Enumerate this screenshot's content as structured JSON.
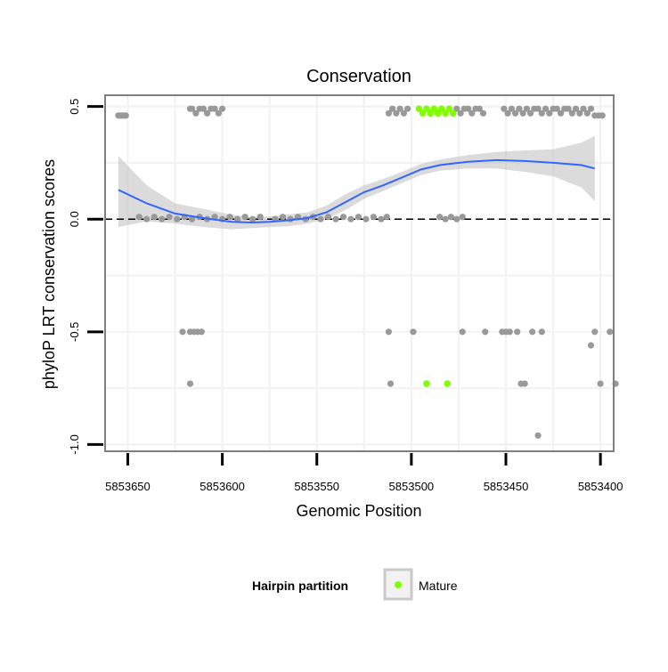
{
  "chart_data": {
    "type": "scatter",
    "title": "Conservation",
    "xlabel": "Genomic Position",
    "ylabel": "phyloP LRT conservation scores",
    "x_reversed": true,
    "xlim": [
      5853662,
      5853393
    ],
    "ylim": [
      -1.03,
      0.55
    ],
    "x_ticks": [
      5853650,
      5853600,
      5853550,
      5853500,
      5853450,
      5853400
    ],
    "y_ticks": [
      0.5,
      0.0,
      -0.5,
      -1.0
    ],
    "x_tick_labels": [
      "5853650",
      "5853600",
      "5853550",
      "5853500",
      "5853450",
      "5853400"
    ],
    "y_tick_labels": [
      "0.5",
      "0.0",
      "-0.5",
      "-1.0"
    ],
    "grid": true,
    "reference_line": {
      "y": 0.0,
      "style": "dashed"
    },
    "legend": {
      "title": "Hairpin partition",
      "placement": "bottom",
      "entries": [
        {
          "label": "Mature",
          "color": "#7fff00"
        }
      ]
    },
    "colors": {
      "points": "#999999",
      "mature": "#7fff00",
      "smooth": "#3366ff",
      "ribbon": "#bdbdbd",
      "panel_border": "#7f7f7f",
      "grid": "#f2f2f2"
    },
    "series": [
      {
        "role": "grey-points",
        "points": [
          [
            5853655,
            0.46
          ],
          [
            5853654,
            0.46
          ],
          [
            5853653,
            0.46
          ],
          [
            5853652,
            0.46
          ],
          [
            5853651,
            0.46
          ],
          [
            5853617,
            0.49
          ],
          [
            5853616,
            0.49
          ],
          [
            5853614,
            0.47
          ],
          [
            5853612,
            0.49
          ],
          [
            5853610,
            0.49
          ],
          [
            5853608,
            0.47
          ],
          [
            5853606,
            0.49
          ],
          [
            5853604,
            0.49
          ],
          [
            5853602,
            0.47
          ],
          [
            5853600,
            0.49
          ],
          [
            5853512,
            0.47
          ],
          [
            5853510,
            0.49
          ],
          [
            5853508,
            0.47
          ],
          [
            5853506,
            0.49
          ],
          [
            5853504,
            0.47
          ],
          [
            5853502,
            0.49
          ],
          [
            5853476,
            0.49
          ],
          [
            5853474,
            0.47
          ],
          [
            5853472,
            0.49
          ],
          [
            5853470,
            0.49
          ],
          [
            5853468,
            0.47
          ],
          [
            5853466,
            0.49
          ],
          [
            5853464,
            0.49
          ],
          [
            5853462,
            0.47
          ],
          [
            5853451,
            0.49
          ],
          [
            5853449,
            0.47
          ],
          [
            5853447,
            0.49
          ],
          [
            5853445,
            0.47
          ],
          [
            5853443,
            0.49
          ],
          [
            5853441,
            0.47
          ],
          [
            5853439,
            0.49
          ],
          [
            5853437,
            0.47
          ],
          [
            5853435,
            0.49
          ],
          [
            5853433,
            0.49
          ],
          [
            5853431,
            0.47
          ],
          [
            5853429,
            0.49
          ],
          [
            5853427,
            0.47
          ],
          [
            5853425,
            0.49
          ],
          [
            5853423,
            0.49
          ],
          [
            5853421,
            0.47
          ],
          [
            5853419,
            0.49
          ],
          [
            5853417,
            0.49
          ],
          [
            5853415,
            0.47
          ],
          [
            5853413,
            0.49
          ],
          [
            5853411,
            0.47
          ],
          [
            5853409,
            0.49
          ],
          [
            5853407,
            0.47
          ],
          [
            5853405,
            0.49
          ],
          [
            5853403,
            0.46
          ],
          [
            5853401,
            0.46
          ],
          [
            5853399,
            0.46
          ],
          [
            5853644,
            0.01
          ],
          [
            5853640,
            0.0
          ],
          [
            5853636,
            0.01
          ],
          [
            5853632,
            0.0
          ],
          [
            5853628,
            0.01
          ],
          [
            5853624,
            0.0
          ],
          [
            5853620,
            0.01
          ],
          [
            5853616,
            0.0
          ],
          [
            5853612,
            0.01
          ],
          [
            5853608,
            0.0
          ],
          [
            5853604,
            0.01
          ],
          [
            5853600,
            0.0
          ],
          [
            5853596,
            0.01
          ],
          [
            5853592,
            0.0
          ],
          [
            5853588,
            0.01
          ],
          [
            5853584,
            0.0
          ],
          [
            5853580,
            0.01
          ],
          [
            5853572,
            0.0
          ],
          [
            5853568,
            0.01
          ],
          [
            5853564,
            0.0
          ],
          [
            5853560,
            0.01
          ],
          [
            5853556,
            0.0
          ],
          [
            5853552,
            0.01
          ],
          [
            5853548,
            0.0
          ],
          [
            5853544,
            0.01
          ],
          [
            5853540,
            0.0
          ],
          [
            5853536,
            0.01
          ],
          [
            5853532,
            0.0
          ],
          [
            5853528,
            0.01
          ],
          [
            5853524,
            0.0
          ],
          [
            5853520,
            0.01
          ],
          [
            5853516,
            0.0
          ],
          [
            5853513,
            0.01
          ],
          [
            5853485,
            0.01
          ],
          [
            5853482,
            0.0
          ],
          [
            5853479,
            0.01
          ],
          [
            5853476,
            0.0
          ],
          [
            5853473,
            0.01
          ],
          [
            5853621,
            -0.5
          ],
          [
            5853617,
            -0.5
          ],
          [
            5853615,
            -0.5
          ],
          [
            5853613,
            -0.5
          ],
          [
            5853611,
            -0.5
          ],
          [
            5853617,
            -0.73
          ],
          [
            5853512,
            -0.5
          ],
          [
            5853499,
            -0.5
          ],
          [
            5853473,
            -0.5
          ],
          [
            5853461,
            -0.5
          ],
          [
            5853452,
            -0.5
          ],
          [
            5853450,
            -0.5
          ],
          [
            5853448,
            -0.5
          ],
          [
            5853444,
            -0.5
          ],
          [
            5853436,
            -0.5
          ],
          [
            5853431,
            -0.5
          ],
          [
            5853403,
            -0.5
          ],
          [
            5853395,
            -0.5
          ],
          [
            5853511,
            -0.73
          ],
          [
            5853442,
            -0.73
          ],
          [
            5853440,
            -0.73
          ],
          [
            5853400,
            -0.73
          ],
          [
            5853392,
            -0.73
          ],
          [
            5853405,
            -0.56
          ],
          [
            5853433,
            -0.96
          ]
        ]
      },
      {
        "role": "mature",
        "name": "Mature",
        "points": [
          [
            5853496,
            0.49
          ],
          [
            5853494,
            0.47
          ],
          [
            5853492,
            0.49
          ],
          [
            5853490,
            0.47
          ],
          [
            5853488,
            0.49
          ],
          [
            5853486,
            0.47
          ],
          [
            5853484,
            0.49
          ],
          [
            5853482,
            0.47
          ],
          [
            5853480,
            0.49
          ],
          [
            5853478,
            0.47
          ],
          [
            5853492,
            -0.73
          ],
          [
            5853481,
            -0.73
          ]
        ]
      },
      {
        "role": "smooth",
        "x": [
          5853655,
          5853640,
          5853625,
          5853610,
          5853595,
          5853585,
          5853575,
          5853565,
          5853555,
          5853545,
          5853535,
          5853525,
          5853515,
          5853505,
          5853495,
          5853485,
          5853470,
          5853455,
          5853440,
          5853425,
          5853410,
          5853403
        ],
        "y": [
          0.13,
          0.07,
          0.025,
          0.005,
          -0.012,
          -0.015,
          -0.012,
          -0.005,
          0.005,
          0.03,
          0.075,
          0.12,
          0.15,
          0.185,
          0.22,
          0.24,
          0.255,
          0.262,
          0.258,
          0.25,
          0.24,
          0.225
        ],
        "lower": [
          -0.035,
          -0.01,
          -0.02,
          -0.035,
          -0.045,
          -0.04,
          -0.035,
          -0.032,
          -0.02,
          0.0,
          0.04,
          0.09,
          0.125,
          0.16,
          0.195,
          0.215,
          0.225,
          0.225,
          0.21,
          0.19,
          0.14,
          0.08
        ],
        "upper": [
          0.28,
          0.15,
          0.07,
          0.045,
          0.02,
          0.01,
          0.012,
          0.022,
          0.03,
          0.06,
          0.11,
          0.15,
          0.178,
          0.21,
          0.245,
          0.265,
          0.285,
          0.298,
          0.305,
          0.31,
          0.34,
          0.37
        ]
      }
    ]
  }
}
